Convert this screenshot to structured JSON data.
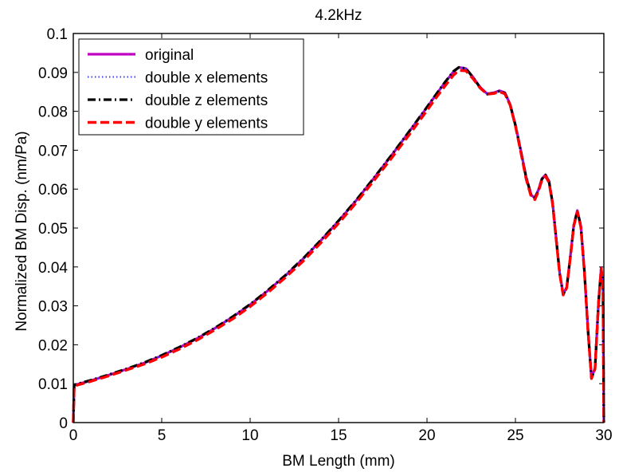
{
  "chart_data": {
    "type": "line",
    "title": "4.2kHz",
    "xlabel": "BM Length (mm)",
    "ylabel": "Normalized BM Disp. (nm/Pa)",
    "xlim": [
      0,
      30
    ],
    "ylim": [
      0,
      0.1
    ],
    "xticks": [
      "0",
      "5",
      "10",
      "15",
      "20",
      "25",
      "30"
    ],
    "yticks": [
      "0",
      "0.01",
      "0.02",
      "0.03",
      "0.04",
      "0.05",
      "0.06",
      "0.07",
      "0.08",
      "0.09",
      "0.1"
    ],
    "grid": false,
    "legend_position": "top-left",
    "series": [
      {
        "name": "original",
        "color": "#c000c0",
        "style": "solid",
        "x": [
          0,
          0.05,
          0.2,
          1,
          2,
          3,
          4,
          5,
          6,
          7,
          8,
          9,
          10,
          11,
          12,
          13,
          14,
          15,
          16,
          17,
          18,
          19,
          20,
          20.5,
          21,
          21.5,
          21.8,
          22.2,
          22.6,
          23,
          23.4,
          23.8,
          24.1,
          24.4,
          24.7,
          25,
          25.3,
          25.6,
          25.9,
          26.1,
          26.3,
          26.5,
          26.7,
          26.9,
          27.1,
          27.3,
          27.5,
          27.7,
          27.9,
          28.1,
          28.3,
          28.5,
          28.7,
          28.9,
          29.1,
          29.3,
          29.5,
          29.7,
          29.85,
          29.95,
          30
        ],
        "y": [
          0,
          0.0095,
          0.0098,
          0.0108,
          0.0122,
          0.0137,
          0.0153,
          0.0172,
          0.0193,
          0.0216,
          0.0242,
          0.0271,
          0.0303,
          0.0339,
          0.0378,
          0.0421,
          0.0468,
          0.0518,
          0.0571,
          0.0628,
          0.0687,
          0.0748,
          0.081,
          0.0842,
          0.0873,
          0.0902,
          0.0913,
          0.091,
          0.0888,
          0.0862,
          0.0845,
          0.0848,
          0.0853,
          0.0848,
          0.0818,
          0.0765,
          0.07,
          0.0632,
          0.0584,
          0.0578,
          0.0598,
          0.0627,
          0.0637,
          0.062,
          0.0565,
          0.0475,
          0.0385,
          0.033,
          0.0348,
          0.0425,
          0.0508,
          0.0545,
          0.0505,
          0.039,
          0.024,
          0.0115,
          0.014,
          0.031,
          0.0398,
          0.035,
          0
        ]
      },
      {
        "name": "double x elements",
        "color": "#3b3bff",
        "style": "dotted",
        "x": [
          0,
          0.05,
          0.2,
          1,
          2,
          3,
          4,
          5,
          6,
          7,
          8,
          9,
          10,
          11,
          12,
          13,
          14,
          15,
          16,
          17,
          18,
          19,
          20,
          20.5,
          21,
          21.5,
          21.8,
          22.2,
          22.6,
          23,
          23.4,
          23.8,
          24.1,
          24.4,
          24.7,
          25,
          25.3,
          25.6,
          25.9,
          26.1,
          26.3,
          26.5,
          26.7,
          26.9,
          27.1,
          27.3,
          27.5,
          27.7,
          27.9,
          28.1,
          28.3,
          28.5,
          28.7,
          28.9,
          29.1,
          29.3,
          29.5,
          29.7,
          29.85,
          29.95,
          30
        ],
        "y": [
          0,
          0.0095,
          0.0098,
          0.0108,
          0.0122,
          0.0137,
          0.0153,
          0.0172,
          0.0193,
          0.0216,
          0.0242,
          0.0271,
          0.0303,
          0.0339,
          0.0378,
          0.0421,
          0.0468,
          0.0518,
          0.0571,
          0.0628,
          0.0687,
          0.0748,
          0.081,
          0.0842,
          0.0873,
          0.0902,
          0.0913,
          0.091,
          0.0888,
          0.0862,
          0.0845,
          0.0848,
          0.0853,
          0.0848,
          0.0818,
          0.0765,
          0.07,
          0.0632,
          0.0584,
          0.0578,
          0.0598,
          0.0627,
          0.0637,
          0.062,
          0.0565,
          0.0475,
          0.0385,
          0.033,
          0.0348,
          0.0425,
          0.0508,
          0.0545,
          0.0505,
          0.039,
          0.024,
          0.0115,
          0.014,
          0.031,
          0.0398,
          0.035,
          0
        ]
      },
      {
        "name": "double z elements",
        "color": "#000000",
        "style": "dashdot",
        "x": [
          0,
          0.05,
          0.2,
          1,
          2,
          3,
          4,
          5,
          6,
          7,
          8,
          9,
          10,
          11,
          12,
          13,
          14,
          15,
          16,
          17,
          18,
          19,
          20,
          20.5,
          21,
          21.5,
          21.8,
          22.2,
          22.6,
          23,
          23.4,
          23.8,
          24.1,
          24.4,
          24.7,
          25,
          25.3,
          25.6,
          25.9,
          26.1,
          26.3,
          26.5,
          26.7,
          26.9,
          27.1,
          27.3,
          27.5,
          27.7,
          27.9,
          28.1,
          28.3,
          28.5,
          28.7,
          28.9,
          29.1,
          29.3,
          29.5,
          29.7,
          29.85,
          29.95,
          30
        ],
        "y": [
          0,
          0.0095,
          0.0099,
          0.0109,
          0.0123,
          0.0138,
          0.0154,
          0.0173,
          0.0194,
          0.0217,
          0.0243,
          0.0272,
          0.0304,
          0.034,
          0.0379,
          0.0422,
          0.0469,
          0.0519,
          0.0572,
          0.0629,
          0.0688,
          0.0749,
          0.0811,
          0.0843,
          0.0874,
          0.0903,
          0.0913,
          0.091,
          0.0887,
          0.0861,
          0.0844,
          0.0847,
          0.0852,
          0.0847,
          0.0817,
          0.0764,
          0.0699,
          0.0631,
          0.0583,
          0.0577,
          0.0597,
          0.0626,
          0.0636,
          0.0619,
          0.0564,
          0.0474,
          0.0384,
          0.0329,
          0.0347,
          0.0424,
          0.0507,
          0.0544,
          0.0504,
          0.0389,
          0.0239,
          0.0114,
          0.0139,
          0.0309,
          0.0397,
          0.0349,
          0
        ]
      },
      {
        "name": "double y elements",
        "color": "#ff0000",
        "style": "dashed",
        "x": [
          0,
          0.05,
          0.2,
          1,
          2,
          3,
          4,
          5,
          6,
          7,
          8,
          9,
          10,
          11,
          12,
          13,
          14,
          15,
          16,
          17,
          18,
          19,
          20,
          20.5,
          21,
          21.5,
          21.8,
          22.2,
          22.6,
          23,
          23.4,
          23.8,
          24.1,
          24.4,
          24.7,
          25,
          25.3,
          25.6,
          25.9,
          26.1,
          26.3,
          26.5,
          26.7,
          26.9,
          27.1,
          27.3,
          27.5,
          27.7,
          27.9,
          28.1,
          28.3,
          28.5,
          28.7,
          28.9,
          29.1,
          29.3,
          29.5,
          29.7,
          29.85,
          29.95,
          30
        ],
        "y": [
          0,
          0.0093,
          0.0096,
          0.0106,
          0.012,
          0.0135,
          0.015,
          0.0168,
          0.0189,
          0.0212,
          0.0238,
          0.0266,
          0.0298,
          0.0334,
          0.0373,
          0.0415,
          0.0462,
          0.0512,
          0.0565,
          0.0622,
          0.068,
          0.074,
          0.0802,
          0.0834,
          0.0864,
          0.0893,
          0.0905,
          0.0904,
          0.0884,
          0.086,
          0.0844,
          0.0846,
          0.085,
          0.0845,
          0.0816,
          0.0762,
          0.0696,
          0.0627,
          0.0579,
          0.0573,
          0.0594,
          0.0624,
          0.0633,
          0.0617,
          0.0562,
          0.0472,
          0.0383,
          0.0328,
          0.0346,
          0.0422,
          0.0505,
          0.0542,
          0.0502,
          0.0387,
          0.0238,
          0.0113,
          0.0138,
          0.0308,
          0.0396,
          0.0348,
          0
        ]
      }
    ]
  }
}
